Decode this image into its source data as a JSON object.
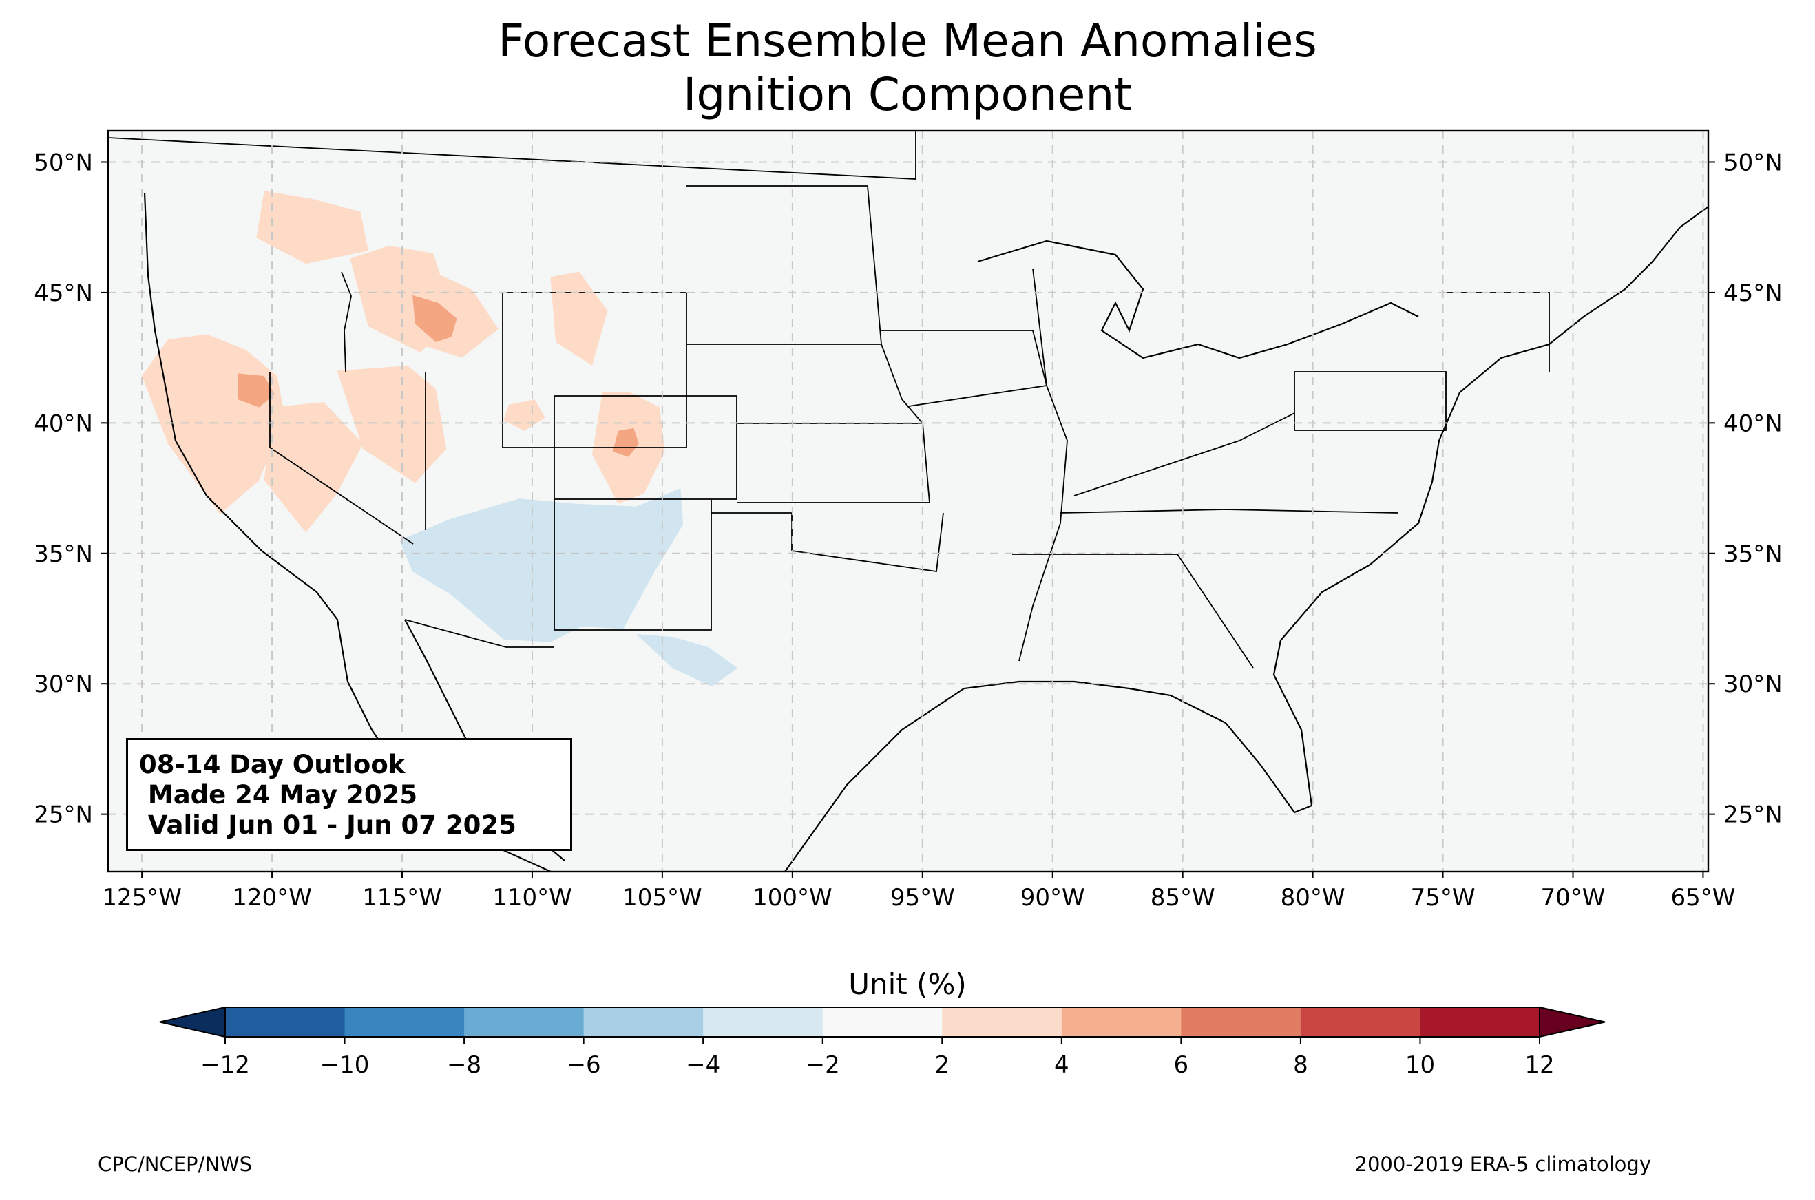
{
  "title": {
    "line1": "Forecast Ensemble Mean Anomalies",
    "line2": "Ignition Component"
  },
  "map": {
    "projection": "PlateCarree",
    "lon_range": [
      -126.3,
      -64.8
    ],
    "lat_range": [
      22.8,
      51.2
    ],
    "background": "#f5f7f6",
    "gridlines": "dashed",
    "lon_ticks": [
      {
        "value": -125,
        "label": "125°W"
      },
      {
        "value": -120,
        "label": "120°W"
      },
      {
        "value": -115,
        "label": "115°W"
      },
      {
        "value": -110,
        "label": "110°W"
      },
      {
        "value": -105,
        "label": "105°W"
      },
      {
        "value": -100,
        "label": "100°W"
      },
      {
        "value": -95,
        "label": "95°W"
      },
      {
        "value": -90,
        "label": "90°W"
      },
      {
        "value": -85,
        "label": "85°W"
      },
      {
        "value": -80,
        "label": "80°W"
      },
      {
        "value": -75,
        "label": "75°W"
      },
      {
        "value": -70,
        "label": "70°W"
      },
      {
        "value": -65,
        "label": "65°W"
      }
    ],
    "lat_ticks": [
      {
        "value": 50,
        "label": "50°N"
      },
      {
        "value": 45,
        "label": "45°N"
      },
      {
        "value": 40,
        "label": "40°N"
      },
      {
        "value": 35,
        "label": "35°N"
      },
      {
        "value": 30,
        "label": "30°N"
      },
      {
        "value": 25,
        "label": "25°N"
      }
    ]
  },
  "anomaly_regions": [
    {
      "level": "2 to 4",
      "color": "#fddbc7",
      "lons": [
        -125,
        -124,
        -122.5,
        -121,
        -119.8,
        -119.5,
        -120.5,
        -122,
        -124
      ],
      "lats": [
        41.8,
        43.2,
        43.4,
        42.8,
        41.8,
        40.2,
        37.8,
        36.5,
        39.2
      ]
    },
    {
      "level": "2 to 4",
      "color": "#fddbc7",
      "lons": [
        -120,
        -118,
        -116.5,
        -117.5,
        -118.7,
        -120.3
      ],
      "lats": [
        40.6,
        40.8,
        39.2,
        37.3,
        35.8,
        37.8
      ]
    },
    {
      "level": "2 to 4",
      "color": "#fddbc7",
      "lons": [
        -117.5,
        -114.8,
        -113.7,
        -113.3,
        -114.5,
        -116.5
      ],
      "lats": [
        42,
        42.2,
        41.3,
        39,
        37.7,
        39
      ]
    },
    {
      "level": "2 to 4",
      "color": "#fddbc7",
      "lons": [
        -117,
        -115.5,
        -113.8,
        -113,
        -114.3,
        -116.3
      ],
      "lats": [
        46.3,
        46.8,
        46.5,
        44,
        42.7,
        43.7
      ]
    },
    {
      "level": "2 to 4",
      "color": "#fddbc7",
      "lons": [
        -115.3,
        -113.8,
        -112.3,
        -111.3,
        -112.7,
        -114.3
      ],
      "lats": [
        45.8,
        45.8,
        45.1,
        43.6,
        42.5,
        43
      ]
    },
    {
      "level": "2 to 4",
      "color": "#fddbc7",
      "lons": [
        -120.3,
        -118.5,
        -116.6,
        -116.3,
        -118.7,
        -120.6
      ],
      "lats": [
        48.9,
        48.6,
        48.1,
        46.6,
        46.1,
        47.1
      ]
    },
    {
      "level": "2 to 4",
      "color": "#fddbc7",
      "lons": [
        -109.3,
        -108.2,
        -107.1,
        -107.7,
        -109.1
      ],
      "lats": [
        45.6,
        45.8,
        44.3,
        42.2,
        43.1
      ]
    },
    {
      "level": "2 to 4",
      "color": "#fddbc7",
      "lons": [
        -107.3,
        -106.3,
        -105.1,
        -104.9,
        -105.7,
        -106.7,
        -107.7
      ],
      "lats": [
        41.2,
        41.2,
        40.6,
        38.9,
        37.3,
        36.9,
        38.8
      ]
    },
    {
      "level": "2 to 4",
      "color": "#fddbc7",
      "lons": [
        -110.9,
        -109.9,
        -109.5,
        -110.3,
        -111.1
      ],
      "lats": [
        40.7,
        40.9,
        40.2,
        39.7,
        40.1
      ]
    },
    {
      "level": "4 to 6",
      "color": "#f4a582",
      "lons": [
        -114.6,
        -113.6,
        -112.9,
        -113.1,
        -113.7,
        -114.5
      ],
      "lats": [
        44.9,
        44.6,
        44,
        43.3,
        43.1,
        43.8
      ]
    },
    {
      "level": "4 to 6",
      "color": "#f4a582",
      "lons": [
        -121.3,
        -120.3,
        -119.9,
        -120.5,
        -121.3
      ],
      "lats": [
        41.9,
        41.8,
        41.1,
        40.6,
        40.9
      ]
    },
    {
      "level": "4 to 6",
      "color": "#f4a582",
      "lons": [
        -106.7,
        -106.1,
        -105.9,
        -106.3,
        -106.9
      ],
      "lats": [
        39.7,
        39.8,
        39.2,
        38.7,
        38.9
      ]
    },
    {
      "level": "-4 to -2",
      "color": "#d1e5f0",
      "lons": [
        -115.1,
        -113.2,
        -110.5,
        -108.3,
        -106,
        -104.3,
        -104.2,
        -105.3,
        -106.5,
        -108.1,
        -109.3,
        -111.1,
        -113.1,
        -114.6
      ],
      "lats": [
        35.5,
        36.3,
        37.1,
        36.9,
        36.8,
        37.5,
        36.1,
        34.3,
        32.1,
        32.2,
        31.6,
        31.7,
        33.4,
        34.3
      ]
    },
    {
      "level": "-4 to -2",
      "color": "#d1e5f0",
      "lons": [
        -106,
        -104.6,
        -103.2,
        -102.1,
        -103.1,
        -104.6
      ],
      "lats": [
        31.9,
        31.8,
        31.4,
        30.6,
        29.9,
        30.6
      ]
    }
  ],
  "info_box": {
    "line1": "08-14 Day Outlook",
    "line2": " Made 24 May 2025",
    "line3": " Valid Jun 01 - Jun 07 2025"
  },
  "colorbar": {
    "label": "Unit (%)",
    "boundaries": [
      -12,
      -10,
      -8,
      -6,
      -4,
      -2,
      2,
      4,
      6,
      8,
      10,
      12
    ],
    "tick_labels": [
      "−12",
      "−10",
      "−8",
      "−6",
      "−4",
      "−2",
      "2",
      "4",
      "6",
      "8",
      "10",
      "12"
    ],
    "colors": [
      "#1f5d9f",
      "#3a85c0",
      "#6aabd3",
      "#a8cfe5",
      "#d8e8f1",
      "#f8f8f8",
      "#fbdcca",
      "#f4b08f",
      "#e07d63",
      "#c94643",
      "#a7182b"
    ],
    "under_color": "#0a2d5e",
    "over_color": "#67001f"
  },
  "footer": {
    "left": "CPC/NCEP/NWS",
    "right": "2000-2019 ERA-5 climatology"
  }
}
